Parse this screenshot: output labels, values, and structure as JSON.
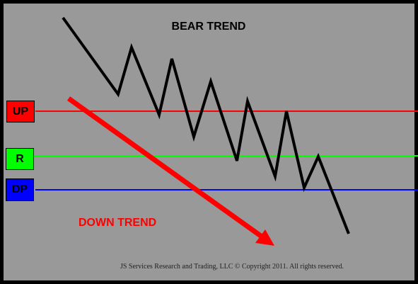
{
  "title": "BEAR TREND",
  "trend_label": "DOWN TREND",
  "copyright": "JS Services Research  and Trading, LLC © Copyright 2011. All rights reserved.",
  "levels": [
    {
      "label": "UP",
      "color": "#ff0000"
    },
    {
      "label": "R",
      "color": "#00ff00"
    },
    {
      "label": "DP",
      "color": "#0000ff"
    }
  ],
  "colors": {
    "background": "#999999",
    "frame": "#000000",
    "price_line": "#000000",
    "trend_arrow": "#ff0000"
  }
}
